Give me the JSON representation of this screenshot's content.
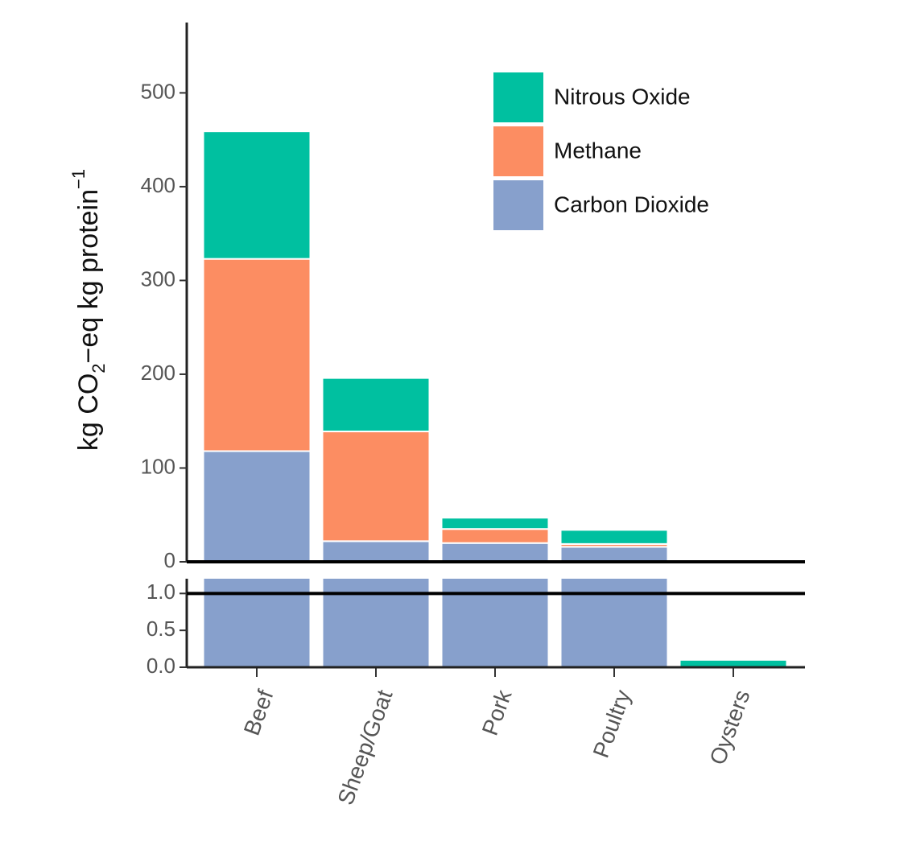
{
  "chart_data": {
    "type": "bar",
    "stacked": true,
    "y_label": [
      "kg CO",
      "2",
      "−eq kg protein",
      "−1"
    ],
    "categories": [
      "Beef",
      "Sheep/Goat",
      "Pork",
      "Poultry",
      "Oysters"
    ],
    "series": [
      {
        "name": "Carbon Dioxide",
        "color": "#87a0cc",
        "values": [
          118,
          22,
          20,
          16,
          0
        ]
      },
      {
        "name": "Methane",
        "color": "#fc8d62",
        "values": [
          205,
          117,
          15,
          3,
          0
        ]
      },
      {
        "name": "Nitrous Oxide",
        "color": "#00c0a0",
        "values": [
          136,
          57,
          12,
          15,
          0.1
        ]
      }
    ],
    "ylim": [
      0,
      575
    ],
    "yticks": [
      0,
      100,
      200,
      300,
      400,
      500
    ],
    "lower_ylim": [
      0,
      1.2
    ],
    "lower_yticks": [
      {
        "value": 0,
        "label": "0.0"
      },
      {
        "value": 0.5,
        "label": "0.5"
      },
      {
        "value": 1,
        "label": "1.0"
      }
    ],
    "legend": "top-right"
  }
}
